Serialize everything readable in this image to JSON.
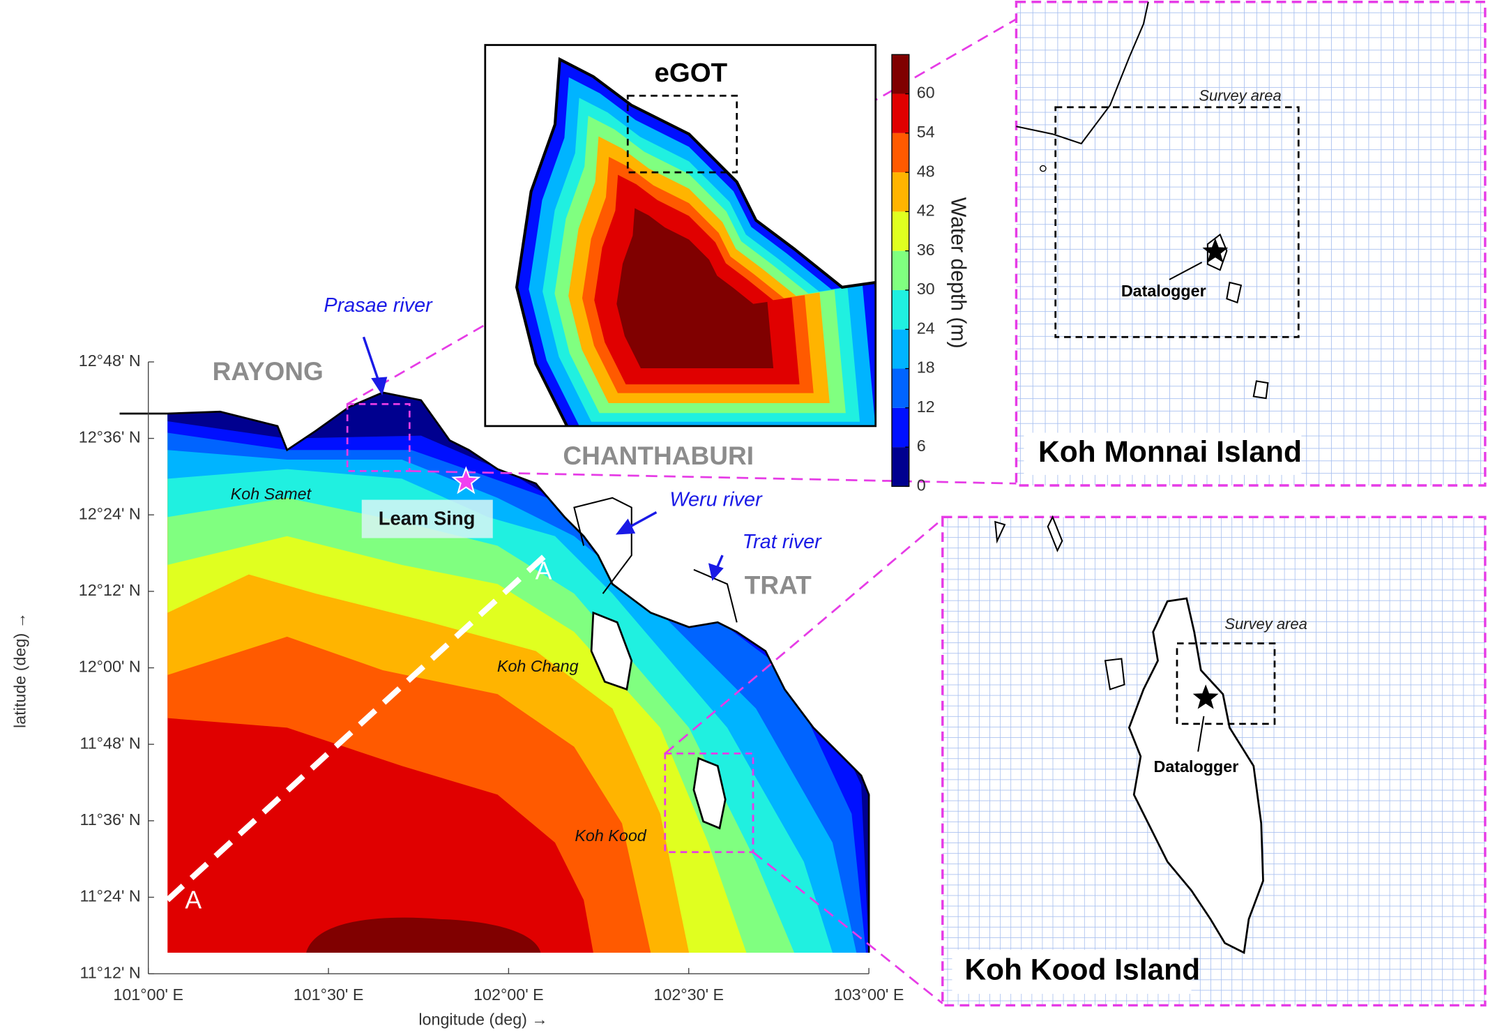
{
  "main_map": {
    "xlabel": "longitude (deg) →",
    "ylabel": "latitude (deg) →",
    "xlim": [
      101,
      103
    ],
    "ylim": [
      11.2,
      12.8
    ],
    "xticks": [
      {
        "value": 101,
        "label": "101°00' E"
      },
      {
        "value": 101.5,
        "label": "101°30' E"
      },
      {
        "value": 102,
        "label": "102°00' E"
      },
      {
        "value": 102.5,
        "label": "102°30' E"
      },
      {
        "value": 103,
        "label": "103°00' E"
      }
    ],
    "yticks": [
      {
        "value": 11.2,
        "label": "11°12' N"
      },
      {
        "value": 11.4,
        "label": "11°24' N"
      },
      {
        "value": 11.6,
        "label": "11°36' N"
      },
      {
        "value": 11.8,
        "label": "11°48' N"
      },
      {
        "value": 12.0,
        "label": "12°00' N"
      },
      {
        "value": 12.2,
        "label": "12°12' N"
      },
      {
        "value": 12.4,
        "label": "12°24' N"
      },
      {
        "value": 12.6,
        "label": "12°36' N"
      },
      {
        "value": 12.8,
        "label": "12°48' N"
      }
    ],
    "provinces": [
      "RAYONG",
      "CHANTHABURI",
      "TRAT"
    ],
    "rivers": [
      "Prasae river",
      "Weru river",
      "Trat river"
    ],
    "islands": [
      "Koh Samet",
      "Koh Chang",
      "Koh Kood"
    ],
    "site": "Leam Sing",
    "transect": [
      "A",
      "A"
    ]
  },
  "inset": {
    "title": "eGOT"
  },
  "colorbar": {
    "label": "Water depth (m)",
    "ticks": [
      0,
      6,
      12,
      18,
      24,
      30,
      36,
      42,
      48,
      54,
      60
    ],
    "colors": [
      "#00008f",
      "#0010ff",
      "#0064ff",
      "#00b4ff",
      "#20f0e0",
      "#80ff80",
      "#e0ff20",
      "#ffb400",
      "#ff5a00",
      "#e00000",
      "#800000"
    ]
  },
  "panels": [
    {
      "title": "Koh Monnai Island",
      "survey": "Survey area",
      "logger": "Datalogger"
    },
    {
      "title": "Koh Kood Island",
      "survey": "Survey area",
      "logger": "Datalogger"
    }
  ]
}
